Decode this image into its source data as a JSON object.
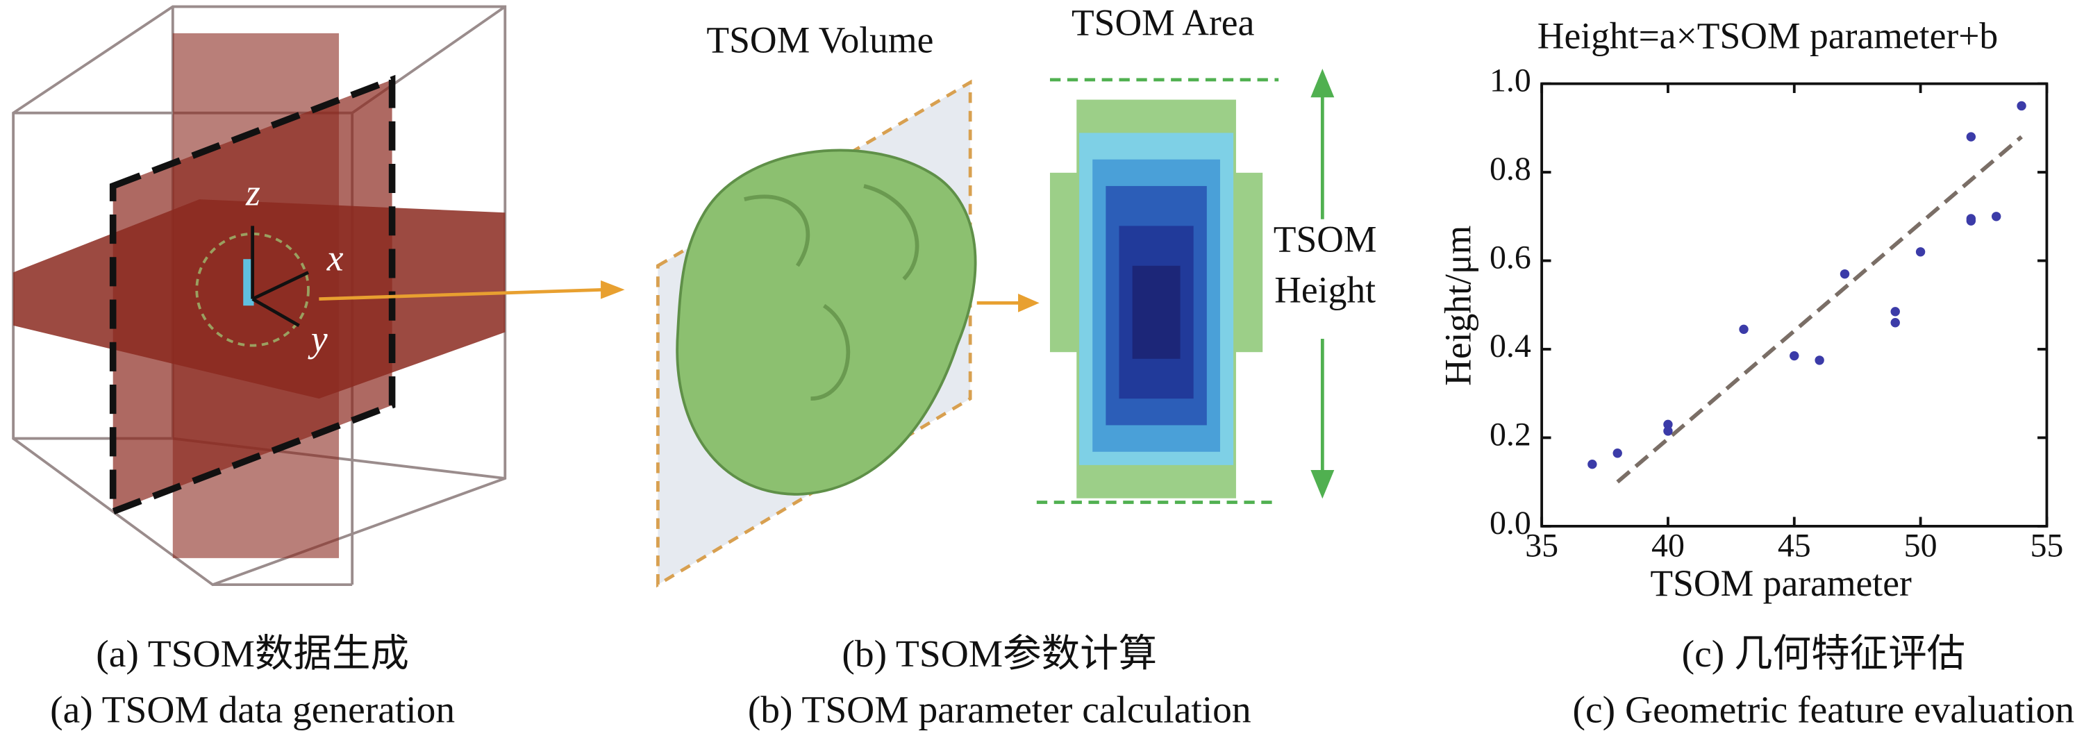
{
  "panel_a": {
    "axis_z": "z",
    "axis_x": "x",
    "axis_y": "y",
    "caption_cn": "(a) TSOM数据生成",
    "caption_en": "(a) TSOM data generation"
  },
  "panel_b": {
    "volume_label": "TSOM Volume",
    "area_label": "TSOM Area",
    "height_label_1": "TSOM",
    "height_label_2": "Height",
    "caption_cn": "(b) TSOM参数计算",
    "caption_en": "(b) TSOM parameter calculation"
  },
  "panel_c": {
    "caption_cn": "(c) 几何特征评估",
    "caption_en": "(c) Geometric feature evaluation"
  },
  "chart_data": {
    "type": "scatter",
    "title": "Height=a×TSOM parameter+b",
    "xlabel": "TSOM parameter",
    "ylabel": "Height/μm",
    "x": [
      37,
      38,
      40,
      40,
      43,
      45,
      46,
      47,
      49,
      49,
      50,
      52,
      52,
      52,
      53,
      54
    ],
    "values": [
      0.14,
      0.165,
      0.23,
      0.215,
      0.445,
      0.385,
      0.375,
      0.57,
      0.485,
      0.46,
      0.62,
      0.88,
      0.69,
      0.695,
      0.7,
      0.95
    ],
    "color": "#3b3ba8",
    "fit_line": {
      "x": [
        38,
        54
      ],
      "values": [
        0.1,
        0.88
      ],
      "color": "#7a6e66"
    },
    "xlim": [
      35,
      55
    ],
    "xticks": [
      35,
      40,
      45,
      50,
      55
    ],
    "ylim": [
      0,
      1
    ],
    "yticks": [
      {
        "value": 0,
        "label": "0.0"
      },
      0.2,
      0.4,
      0.6,
      0.8,
      {
        "value": 1,
        "label": "1.0"
      }
    ]
  }
}
